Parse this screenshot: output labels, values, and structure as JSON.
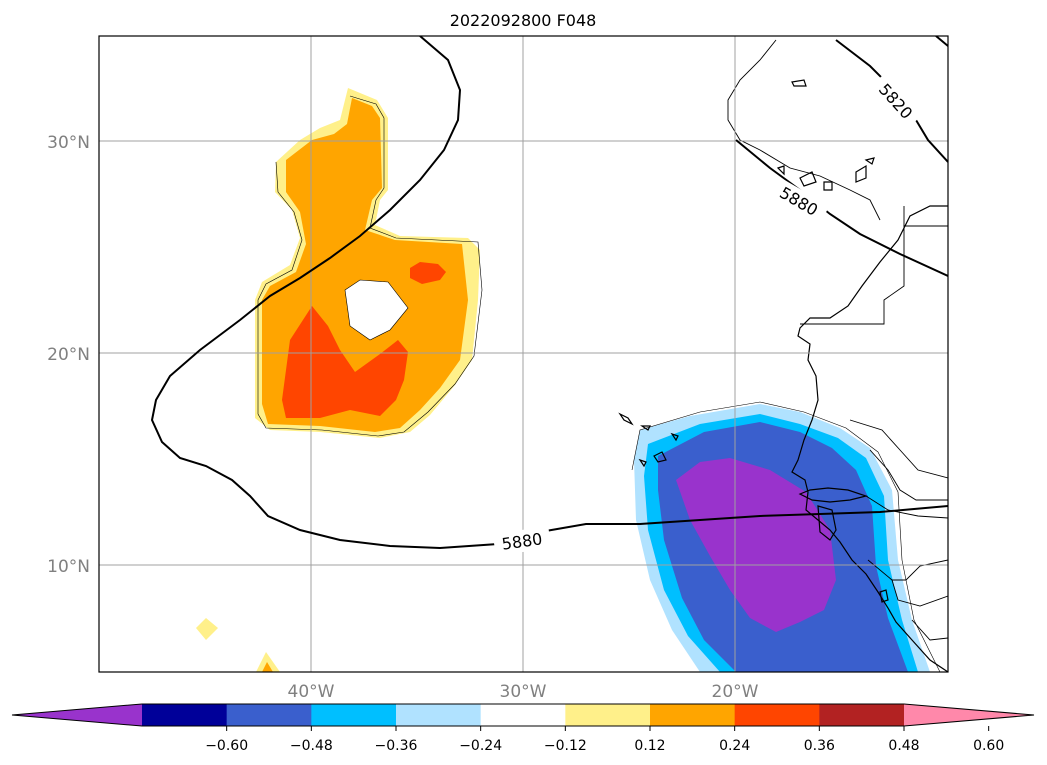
{
  "title": "2022092800 F048",
  "map": {
    "lon_range": [
      -50,
      -10
    ],
    "lat_range": [
      5,
      35
    ],
    "lon_ticks": [
      {
        "value": -40,
        "label": "40°W"
      },
      {
        "value": -30,
        "label": "30°W"
      },
      {
        "value": -20,
        "label": "20°W"
      }
    ],
    "lat_ticks": [
      {
        "value": 30,
        "label": "30°N"
      },
      {
        "value": 20,
        "label": "20°N"
      },
      {
        "value": 10,
        "label": "10°N"
      }
    ],
    "gridlines": true,
    "height_contours": [
      "5820",
      "5880",
      "5880"
    ]
  },
  "colorbar": {
    "extend": "both",
    "colors": [
      "#9933cc",
      "#000099",
      "#3a5fcd",
      "#00bfff",
      "#b0e2ff",
      "#ffffff",
      "#fff08a",
      "#ffa500",
      "#ff4500",
      "#b22222",
      "#ff88aa"
    ],
    "ticks": [
      "−0.60",
      "−0.48",
      "−0.36",
      "−0.24",
      "−0.12",
      "0.12",
      "0.24",
      "0.36",
      "0.48",
      "0.60"
    ]
  }
}
